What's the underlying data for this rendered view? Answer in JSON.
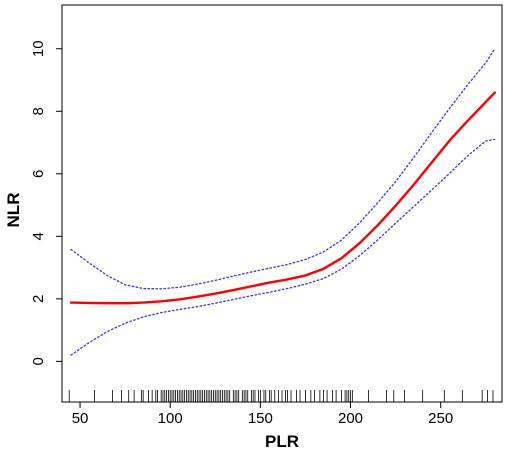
{
  "chart_data": {
    "type": "line",
    "xlabel": "PLR",
    "ylabel": "NLR",
    "xlim": [
      40,
      284
    ],
    "ylim": [
      -1.3,
      11.4
    ],
    "x_ticks": [
      50,
      100,
      150,
      200,
      250
    ],
    "y_ticks": [
      0,
      2,
      4,
      6,
      8,
      10
    ],
    "grid": false,
    "legend": "none",
    "series": [
      {
        "role": "fit",
        "color": "#ff0000",
        "style": "solid",
        "x": [
          45,
          55,
          65,
          75,
          85,
          95,
          105,
          115,
          125,
          135,
          145,
          155,
          165,
          175,
          185,
          195,
          205,
          215,
          225,
          235,
          245,
          255,
          265,
          275,
          280
        ],
        "y": [
          1.88,
          1.87,
          1.86,
          1.86,
          1.88,
          1.92,
          1.98,
          2.07,
          2.17,
          2.28,
          2.4,
          2.52,
          2.62,
          2.75,
          2.96,
          3.3,
          3.78,
          4.35,
          4.98,
          5.65,
          6.36,
          7.07,
          7.7,
          8.3,
          8.6
        ]
      },
      {
        "role": "upper-ci",
        "color": "#3333ff",
        "style": "dotted",
        "x": [
          45,
          55,
          65,
          75,
          85,
          95,
          105,
          115,
          125,
          135,
          145,
          155,
          165,
          175,
          185,
          195,
          205,
          215,
          225,
          235,
          245,
          255,
          265,
          275,
          280
        ],
        "y": [
          3.58,
          3.15,
          2.75,
          2.45,
          2.33,
          2.32,
          2.37,
          2.47,
          2.59,
          2.73,
          2.86,
          2.98,
          3.1,
          3.26,
          3.5,
          3.88,
          4.43,
          5.07,
          5.75,
          6.52,
          7.32,
          8.1,
          8.85,
          9.55,
          10.0
        ]
      },
      {
        "role": "lower-ci",
        "color": "#3333ff",
        "style": "dotted",
        "x": [
          45,
          55,
          65,
          75,
          85,
          95,
          105,
          115,
          125,
          135,
          145,
          155,
          165,
          175,
          185,
          195,
          205,
          215,
          225,
          235,
          245,
          255,
          265,
          275,
          280
        ],
        "y": [
          0.2,
          0.6,
          0.95,
          1.22,
          1.42,
          1.56,
          1.66,
          1.75,
          1.86,
          1.98,
          2.1,
          2.21,
          2.33,
          2.47,
          2.65,
          2.95,
          3.38,
          3.88,
          4.42,
          4.95,
          5.48,
          6.02,
          6.58,
          7.05,
          7.1
        ]
      }
    ],
    "rug": {
      "color": "#000000",
      "x": [
        44,
        58,
        68,
        73,
        77,
        80,
        84,
        85,
        88,
        90,
        92,
        93,
        95,
        96,
        97,
        98,
        99,
        100,
        101,
        102,
        103,
        104,
        105,
        106,
        107,
        108,
        109,
        110,
        111,
        112,
        113,
        114,
        115,
        116,
        117,
        118,
        119,
        120,
        121,
        122,
        123,
        124,
        125,
        126,
        127,
        128,
        129,
        130,
        131,
        132,
        133,
        135,
        136,
        137,
        138,
        140,
        141,
        142,
        143,
        145,
        146,
        147,
        149,
        150,
        152,
        153,
        155,
        156,
        158,
        160,
        162,
        164,
        165,
        167,
        170,
        172,
        175,
        178,
        180,
        183,
        185,
        187,
        190,
        192,
        195,
        197,
        198,
        199,
        200,
        201,
        210,
        220,
        224,
        230,
        240,
        252,
        262,
        273,
        276,
        279
      ]
    }
  }
}
